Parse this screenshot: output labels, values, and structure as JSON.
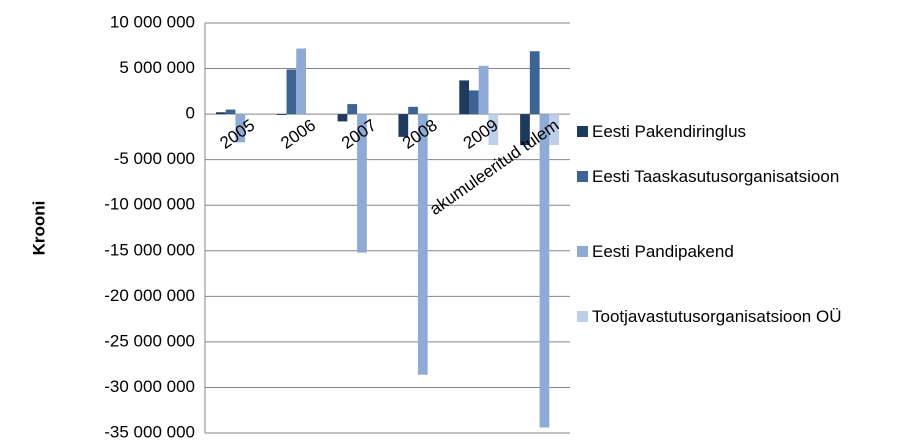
{
  "chart_data": {
    "type": "bar",
    "y_axis_label": "Krooni",
    "categories": [
      "2005",
      "2006",
      "2007",
      "2008",
      "2009",
      "akumuleeritud tulem"
    ],
    "series": [
      {
        "name": "Eesti Pakendiringlus",
        "color": "#1f3a5f",
        "values": [
          200000,
          -100000,
          -800000,
          -2500000,
          3700000,
          -3400000
        ]
      },
      {
        "name": "Eesti Taaskasutusorganisatsioon",
        "color": "#3a6496",
        "values": [
          500000,
          4900000,
          1100000,
          800000,
          2600000,
          6900000
        ]
      },
      {
        "name": "Eesti Pandipakend",
        "color": "#8eaad6",
        "values": [
          -3100000,
          7200000,
          -15200000,
          -28600000,
          5300000,
          -34400000
        ]
      },
      {
        "name": "Tootjavastutusorganisatsioon OÜ",
        "color": "#bcd0ea",
        "values": [
          0,
          0,
          0,
          0,
          -3400000,
          -3400000
        ]
      }
    ],
    "ylim": [
      -35000000,
      10000000
    ],
    "yticks": [
      {
        "value": 10000000,
        "label": "10 000 000"
      },
      {
        "value": 5000000,
        "label": "5 000 000"
      },
      0,
      {
        "value": -5000000,
        "label": "-5 000 000"
      },
      {
        "value": -10000000,
        "label": "-10 000 000"
      },
      {
        "value": -15000000,
        "label": "-15 000 000"
      },
      {
        "value": -20000000,
        "label": "-20 000 000"
      },
      {
        "value": -25000000,
        "label": "-25 000 000"
      },
      {
        "value": -30000000,
        "label": "-30 000 000"
      },
      {
        "value": -35000000,
        "label": "-35 000 000"
      }
    ],
    "grid": true
  }
}
